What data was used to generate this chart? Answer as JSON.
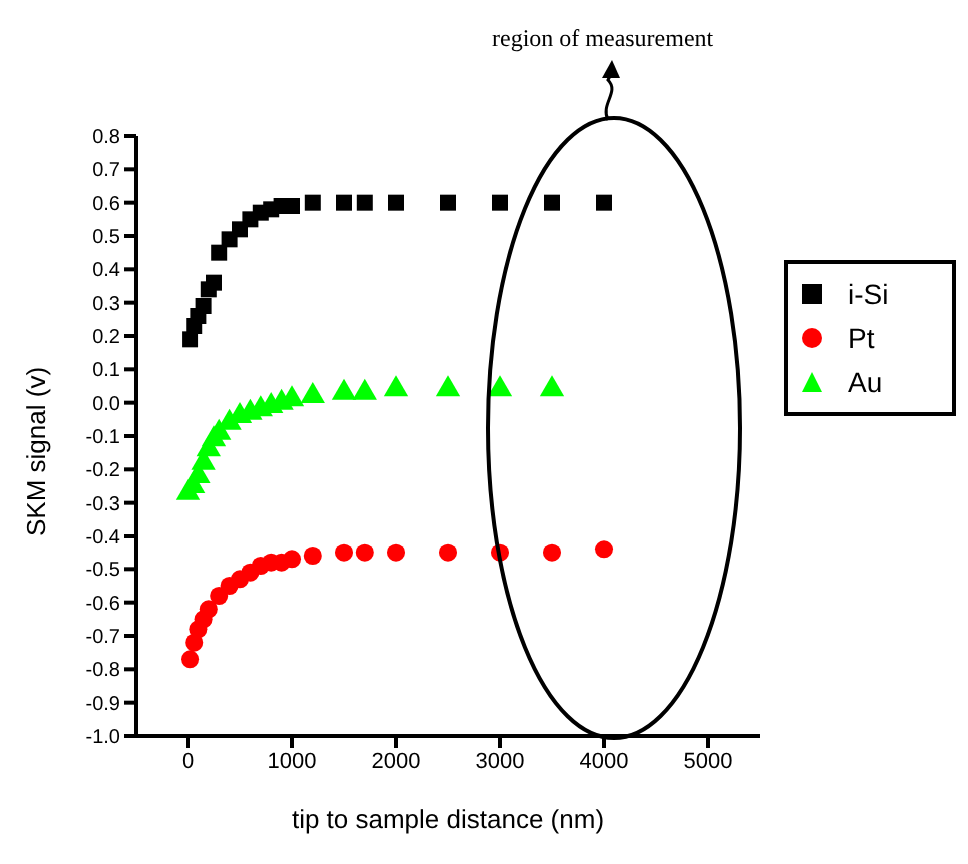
{
  "chart_data": {
    "type": "scatter",
    "xlabel": "tip to sample distance (nm)",
    "ylabel": "SKM signal (v)",
    "annotations": [
      "region of measurement"
    ],
    "xlim": [
      -500,
      5500
    ],
    "xticks": [
      0,
      1000,
      2000,
      3000,
      4000,
      5000
    ],
    "ylim": [
      -1.0,
      0.8
    ],
    "yticks": [
      0.8,
      0.7,
      0.6,
      0.5,
      0.4,
      0.3,
      0.2,
      0.1,
      {
        "value": 0,
        "label": "0.0"
      },
      -0.1,
      -0.2,
      -0.3,
      -0.4,
      -0.5,
      -0.6,
      -0.7,
      -0.8,
      -0.9,
      {
        "value": -1,
        "label": "-1.0"
      }
    ],
    "legend": "right",
    "grid": false,
    "series": [
      {
        "name": "i-Si",
        "color": "#000000",
        "marker": "square",
        "x": [
          20,
          60,
          100,
          150,
          200,
          250,
          300,
          400,
          500,
          600,
          700,
          800,
          900,
          1000,
          1200,
          1500,
          1700,
          2000,
          2500,
          3000,
          3500,
          4000
        ],
        "values": [
          0.19,
          0.23,
          0.26,
          0.29,
          0.34,
          0.36,
          0.45,
          0.49,
          0.52,
          0.55,
          0.57,
          0.58,
          0.59,
          0.59,
          0.6,
          0.6,
          0.6,
          0.6,
          0.6,
          0.6,
          0.6,
          0.6
        ]
      },
      {
        "name": "Pt",
        "color": "#ff0000",
        "marker": "circle",
        "x": [
          20,
          60,
          100,
          150,
          200,
          300,
          400,
          500,
          600,
          700,
          800,
          900,
          1000,
          1200,
          1500,
          1700,
          2000,
          2500,
          3000,
          3500,
          4000
        ],
        "values": [
          -0.77,
          -0.72,
          -0.68,
          -0.65,
          -0.62,
          -0.58,
          -0.55,
          -0.53,
          -0.51,
          -0.49,
          -0.48,
          -0.48,
          -0.47,
          -0.46,
          -0.45,
          -0.45,
          -0.45,
          -0.45,
          -0.45,
          -0.45,
          -0.44
        ]
      },
      {
        "name": "Au",
        "color": "#00ff00",
        "marker": "triangle",
        "x": [
          0,
          50,
          100,
          150,
          200,
          250,
          300,
          400,
          500,
          600,
          700,
          800,
          900,
          1000,
          1200,
          1500,
          1700,
          2000,
          2500,
          3000,
          3500
        ],
        "values": [
          -0.27,
          -0.25,
          -0.22,
          -0.18,
          -0.14,
          -0.11,
          -0.09,
          -0.06,
          -0.04,
          -0.03,
          -0.02,
          -0.01,
          0.0,
          0.01,
          0.02,
          0.03,
          0.03,
          0.04,
          0.04,
          0.04,
          0.04
        ]
      }
    ]
  }
}
